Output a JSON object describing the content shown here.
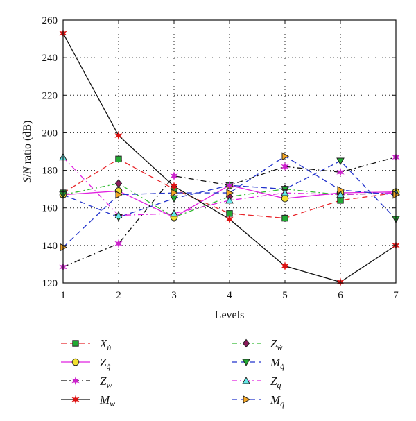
{
  "chart_data": {
    "type": "line",
    "xlabel": "Levels",
    "ylabel": "S/N ratio (dB)",
    "xlim": [
      1,
      7
    ],
    "ylim": [
      120,
      260
    ],
    "x_ticks": [
      1,
      2,
      3,
      4,
      5,
      6,
      7
    ],
    "y_ticks": [
      120,
      140,
      160,
      180,
      200,
      220,
      240,
      260
    ],
    "grid": true,
    "legend_position": "bottom",
    "x": [
      1,
      2,
      3,
      4,
      5,
      6,
      7
    ],
    "series": [
      {
        "name": "X",
        "sub": "u̇",
        "color": "#e8262b",
        "dash": "8,5",
        "marker": "square",
        "marker_fill": "#22aa33",
        "values": [
          168,
          186,
          170,
          157,
          154.5,
          164,
          168
        ]
      },
      {
        "name": "Z",
        "sub": "ẇ",
        "color": "#33bb33",
        "dash": "8,4,2,4",
        "marker": "diamond",
        "marker_fill": "#8b1a5a",
        "values": [
          167,
          173,
          155,
          166,
          170,
          167,
          168
        ]
      },
      {
        "name": "Z",
        "sub": "q̇",
        "color": "#e020e0",
        "dash": "",
        "marker": "circle",
        "marker_fill": "#f2e030",
        "values": [
          167,
          169,
          155,
          172,
          165,
          168,
          168.5
        ]
      },
      {
        "name": "M",
        "sub": "q̇",
        "color": "#2233cc",
        "dash": "8,5",
        "marker": "triangle-down",
        "marker_fill": "#22aa33",
        "values": [
          167,
          155,
          165,
          172,
          170,
          185,
          154
        ]
      },
      {
        "name": "Z",
        "sub": "w",
        "color": "#111111",
        "dash": "8,4,2,4",
        "marker": "star",
        "marker_fill": "#cc22cc",
        "values": [
          128.5,
          141,
          177,
          172,
          182,
          179,
          187
        ]
      },
      {
        "name": "Z",
        "sub": "q",
        "color": "#e020e0",
        "dash": "8,4,2,4",
        "marker": "triangle-up",
        "marker_fill": "#66e8e8",
        "values": [
          187,
          156,
          157,
          164,
          168,
          167,
          168
        ]
      },
      {
        "name": "M",
        "sub": "w",
        "color": "#111111",
        "dash": "",
        "marker": "star",
        "marker_fill": "#dd1111",
        "values": [
          253,
          198.5,
          171.5,
          154,
          129,
          120.5,
          140
        ]
      },
      {
        "name": "M",
        "sub": "q",
        "color": "#2233cc",
        "dash": "8,5",
        "marker": "triangle-right",
        "marker_fill": "#f5a623",
        "values": [
          139,
          167,
          168,
          168,
          187.5,
          169.5,
          167
        ]
      }
    ]
  }
}
